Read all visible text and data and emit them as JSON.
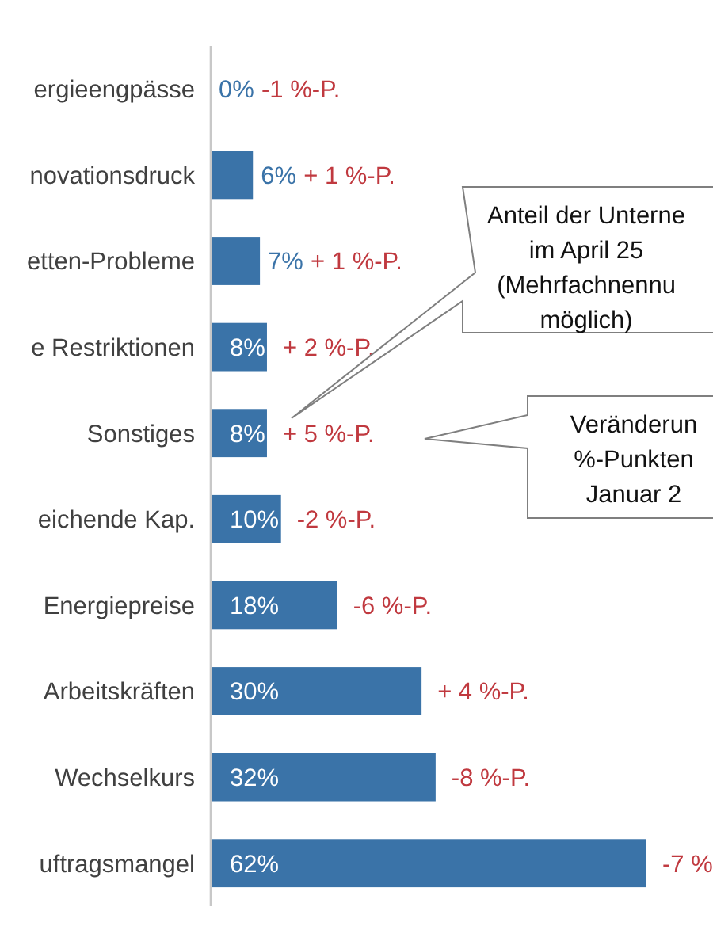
{
  "chart_data": {
    "type": "bar",
    "orientation": "horizontal",
    "data_labels": true,
    "categories": [
      "ergieengpässe",
      "novationsdruck",
      "etten-Probleme",
      "e Restriktionen",
      "Sonstiges",
      "eichende Kap.",
      "Energiepreise",
      "Arbeitskräften",
      "Wechselkurs",
      "uftragsmangel"
    ],
    "values": [
      0,
      6,
      7,
      8,
      8,
      10,
      18,
      30,
      32,
      62
    ],
    "value_labels": [
      "0%",
      "6%",
      "7%",
      "8%",
      "8%",
      "10%",
      "18%",
      "30%",
      "32%",
      "62%"
    ],
    "color": "#3a73a8",
    "annotations": [
      "Anteil der Unterne\nim April 25\n(Mehrfachnennu\nmöglich)",
      "Veränderun\n%-Punkten \nJanuar 2",
      {
        "text": "-1 %-P.",
        "x": 0,
        "y": "ergieengpässe"
      },
      {
        "text": "+ 1 %-P.",
        "x": 6,
        "y": "novationsdruck"
      },
      {
        "text": "+ 1 %-P.",
        "x": 7,
        "y": "etten-Probleme"
      },
      {
        "text": "+ 2 %-P.",
        "x": 8,
        "y": "e Restriktionen"
      },
      {
        "text": "+ 5 %-P.",
        "x": 8,
        "y": "Sonstiges"
      },
      {
        "text": "-2 %-P.",
        "x": 10,
        "y": "eichende Kap."
      },
      {
        "text": "-6 %-P.",
        "x": 18,
        "y": "Energiepreise"
      },
      {
        "text": "+ 4 %-P.",
        "x": 30,
        "y": "Arbeitskräften"
      },
      {
        "text": "-8 %-P.",
        "x": 32,
        "y": "Wechselkurs"
      },
      {
        "text": "-7 %",
        "x": 62,
        "y": "uftragsmangel"
      }
    ]
  }
}
